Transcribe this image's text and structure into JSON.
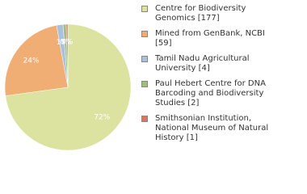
{
  "chart_data": {
    "type": "pie",
    "categories": [
      "Centre for Biodiversity Genomics [177]",
      "Mined from GenBank, NCBI [59]",
      "Tamil Nadu Agricultural University [4]",
      "Paul Hebert Centre for DNA Barcoding and Biodiversity Studies [2]",
      "Smithsonian Institution, National Museum of Natural History [1]"
    ],
    "values": [
      177,
      59,
      4,
      2,
      1
    ],
    "value_labels": [
      "72%",
      "24%",
      "1%",
      "0%",
      "0%"
    ],
    "colors": [
      "#dce3a0",
      "#f0ae74",
      "#a9c1dd",
      "#9ec07c",
      "#e07262"
    ]
  }
}
